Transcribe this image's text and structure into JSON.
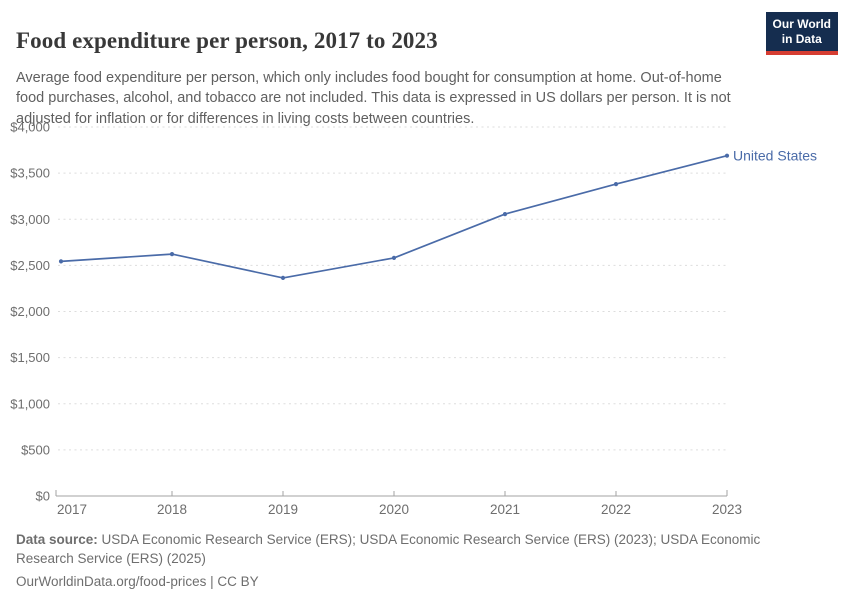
{
  "header": {
    "title": "Food expenditure per person, 2017 to 2023",
    "subtitle": "Average food expenditure per person, which only includes food bought for consumption at home. Out-of-home food purchases, alcohol, and tobacco are not included. This data is expressed in US dollars per person. It is not adjusted for inflation or for differences in living costs between countries.",
    "logo": {
      "line1": "Our World",
      "line2": "in Data",
      "bg_color": "#152d4f",
      "bar_color": "#d63d32"
    }
  },
  "chart_data": {
    "type": "line",
    "title": "Food expenditure per person, 2017 to 2023",
    "x": [
      2017,
      2018,
      2019,
      2020,
      2021,
      2022,
      2023
    ],
    "xtick_labels": [
      "2017",
      "2018",
      "2019",
      "2020",
      "2021",
      "2022",
      "2023"
    ],
    "series": [
      {
        "name": "United States",
        "color": "#4a6ba8",
        "values": [
          2543,
          2622,
          2364,
          2581,
          3056,
          3381,
          3689
        ]
      }
    ],
    "ylim": [
      0,
      4000
    ],
    "ytick_step": 500,
    "ytick_labels": [
      "$0",
      "$500",
      "$1,000",
      "$1,500",
      "$2,000",
      "$2,500",
      "$3,000",
      "$3,500",
      "$4,000"
    ],
    "grid": "horizontal-dashed",
    "legend_position": "line-end-label",
    "styles": {
      "grid_color": "#dddddd",
      "axis_color": "#a3a3a3",
      "tick_label_color": "#6e6e6e"
    }
  },
  "footer": {
    "datasource_label": "Data source:",
    "datasource_text": " USDA Economic Research Service (ERS); USDA Economic Research Service (ERS) (2023); USDA Economic Research Service (ERS) (2025)",
    "link": "OurWorldinData.org/food-prices",
    "separator": " | ",
    "license": "CC BY"
  }
}
